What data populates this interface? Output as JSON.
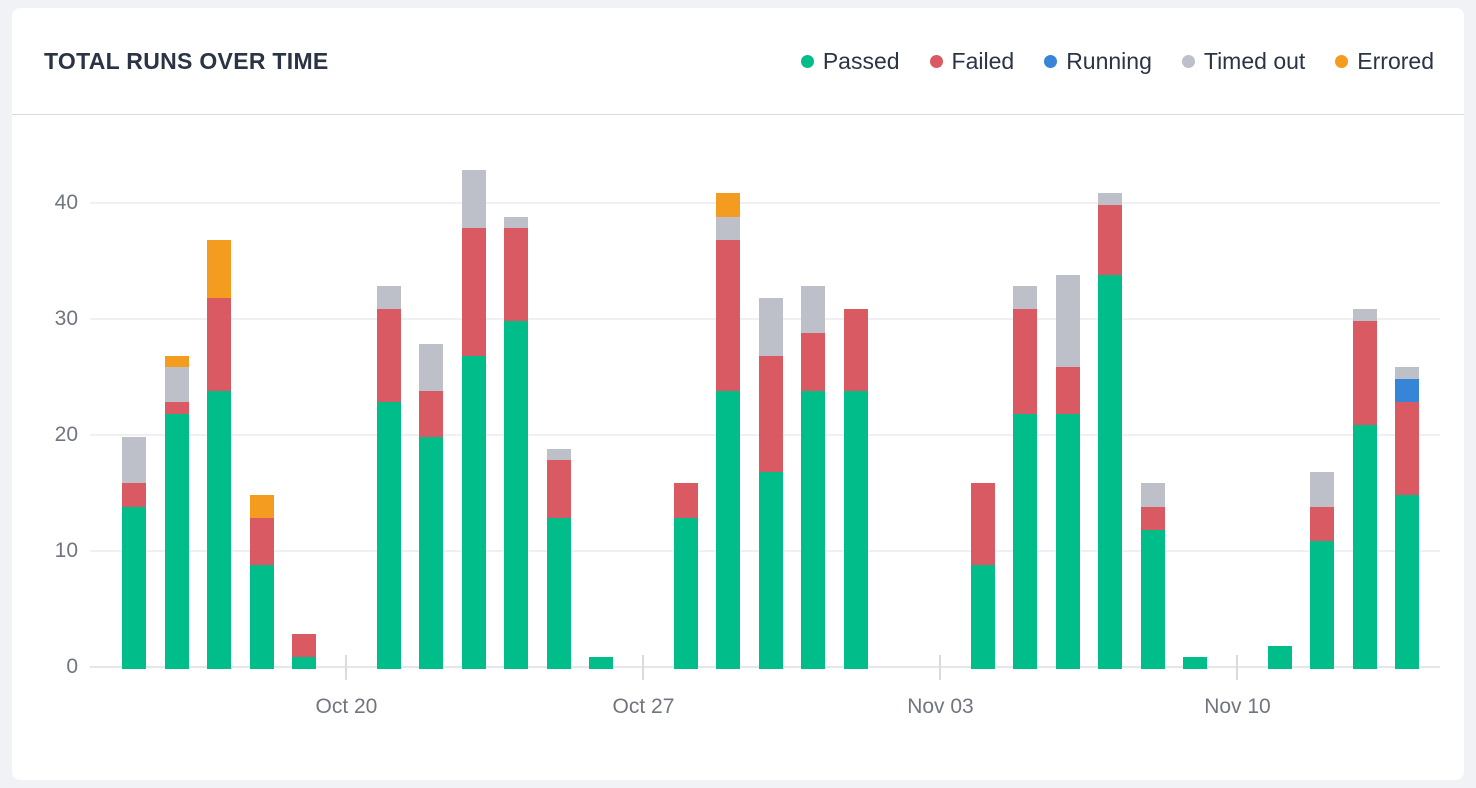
{
  "header": {
    "title": "TOTAL RUNS OVER TIME"
  },
  "legend": [
    {
      "label": "Passed",
      "color": "#00bd8a"
    },
    {
      "label": "Failed",
      "color": "#d95a62"
    },
    {
      "label": "Running",
      "color": "#3685d6"
    },
    {
      "label": "Timed out",
      "color": "#bdbfc9"
    },
    {
      "label": "Errored",
      "color": "#f49c20"
    }
  ],
  "chart_data": {
    "type": "bar",
    "stacked": true,
    "title": "TOTAL RUNS OVER TIME",
    "xlabel": "",
    "ylabel": "",
    "ylim": [
      0,
      44
    ],
    "y_ticks": [
      0,
      10,
      20,
      30,
      40
    ],
    "grid": true,
    "legend_position": "top-right",
    "series_order": [
      "passed",
      "failed",
      "running",
      "timed_out",
      "errored"
    ],
    "series_colors": {
      "passed": "#00bd8a",
      "failed": "#d95a62",
      "running": "#3685d6",
      "timed_out": "#bdbfc9",
      "errored": "#f49c20"
    },
    "x_ticks": [
      {
        "index": 5,
        "label": "Oct 20"
      },
      {
        "index": 12,
        "label": "Oct 27"
      },
      {
        "index": 19,
        "label": "Nov 03"
      },
      {
        "index": 26,
        "label": "Nov 10"
      }
    ],
    "slots": [
      {
        "date": "Oct 15",
        "passed": 14,
        "failed": 2,
        "running": 0,
        "timed_out": 4,
        "errored": 0
      },
      {
        "date": "Oct 16",
        "passed": 22,
        "failed": 1,
        "running": 0,
        "timed_out": 3,
        "errored": 1
      },
      {
        "date": "Oct 17",
        "passed": 24,
        "failed": 8,
        "running": 0,
        "timed_out": 0,
        "errored": 5
      },
      {
        "date": "Oct 18",
        "passed": 9,
        "failed": 4,
        "running": 0,
        "timed_out": 0,
        "errored": 2
      },
      {
        "date": "Oct 19",
        "passed": 1,
        "failed": 2,
        "running": 0,
        "timed_out": 0,
        "errored": 0
      },
      {
        "date": "Oct 20",
        "passed": 0,
        "failed": 0,
        "running": 0,
        "timed_out": 0,
        "errored": 0
      },
      {
        "date": "Oct 21",
        "passed": 23,
        "failed": 8,
        "running": 0,
        "timed_out": 2,
        "errored": 0
      },
      {
        "date": "Oct 22",
        "passed": 20,
        "failed": 4,
        "running": 0,
        "timed_out": 4,
        "errored": 0
      },
      {
        "date": "Oct 23",
        "passed": 27,
        "failed": 11,
        "running": 0,
        "timed_out": 5,
        "errored": 0
      },
      {
        "date": "Oct 24",
        "passed": 30,
        "failed": 8,
        "running": 0,
        "timed_out": 1,
        "errored": 0
      },
      {
        "date": "Oct 25",
        "passed": 13,
        "failed": 5,
        "running": 0,
        "timed_out": 1,
        "errored": 0
      },
      {
        "date": "Oct 26",
        "passed": 1,
        "failed": 0,
        "running": 0,
        "timed_out": 0,
        "errored": 0
      },
      {
        "date": "Oct 27",
        "passed": 0,
        "failed": 0,
        "running": 0,
        "timed_out": 0,
        "errored": 0
      },
      {
        "date": "Oct 28",
        "passed": 13,
        "failed": 3,
        "running": 0,
        "timed_out": 0,
        "errored": 0
      },
      {
        "date": "Oct 29",
        "passed": 24,
        "failed": 13,
        "running": 0,
        "timed_out": 2,
        "errored": 2
      },
      {
        "date": "Oct 30",
        "passed": 17,
        "failed": 10,
        "running": 0,
        "timed_out": 5,
        "errored": 0
      },
      {
        "date": "Oct 31",
        "passed": 24,
        "failed": 5,
        "running": 0,
        "timed_out": 4,
        "errored": 0
      },
      {
        "date": "Nov 01",
        "passed": 24,
        "failed": 7,
        "running": 0,
        "timed_out": 0,
        "errored": 0
      },
      {
        "date": "Nov 02",
        "passed": 0,
        "failed": 0,
        "running": 0,
        "timed_out": 0,
        "errored": 0
      },
      {
        "date": "Nov 03",
        "passed": 0,
        "failed": 0,
        "running": 0,
        "timed_out": 0,
        "errored": 0
      },
      {
        "date": "Nov 04",
        "passed": 9,
        "failed": 7,
        "running": 0,
        "timed_out": 0,
        "errored": 0
      },
      {
        "date": "Nov 05",
        "passed": 22,
        "failed": 9,
        "running": 0,
        "timed_out": 2,
        "errored": 0
      },
      {
        "date": "Nov 06",
        "passed": 22,
        "failed": 4,
        "running": 0,
        "timed_out": 8,
        "errored": 0
      },
      {
        "date": "Nov 07",
        "passed": 34,
        "failed": 6,
        "running": 0,
        "timed_out": 1,
        "errored": 0
      },
      {
        "date": "Nov 08",
        "passed": 12,
        "failed": 2,
        "running": 0,
        "timed_out": 2,
        "errored": 0
      },
      {
        "date": "Nov 09",
        "passed": 1,
        "failed": 0,
        "running": 0,
        "timed_out": 0,
        "errored": 0
      },
      {
        "date": "Nov 10",
        "passed": 0,
        "failed": 0,
        "running": 0,
        "timed_out": 0,
        "errored": 0
      },
      {
        "date": "Nov 11",
        "passed": 2,
        "failed": 0,
        "running": 0,
        "timed_out": 0,
        "errored": 0
      },
      {
        "date": "Nov 12",
        "passed": 11,
        "failed": 3,
        "running": 0,
        "timed_out": 3,
        "errored": 0
      },
      {
        "date": "Nov 13",
        "passed": 21,
        "failed": 9,
        "running": 0,
        "timed_out": 1,
        "errored": 0
      },
      {
        "date": "Nov 14",
        "passed": 15,
        "failed": 8,
        "running": 2,
        "timed_out": 1,
        "errored": 0
      }
    ]
  }
}
